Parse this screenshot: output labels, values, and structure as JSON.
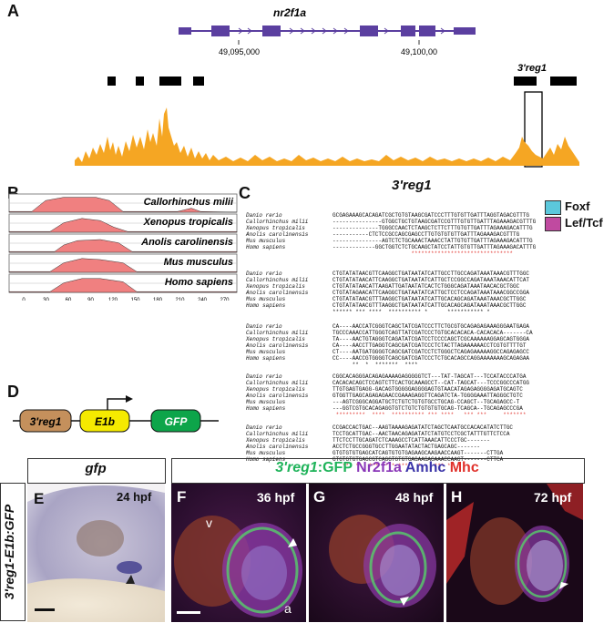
{
  "panels": {
    "A": "A",
    "B": "B",
    "C": "C",
    "D": "D",
    "E": "E",
    "F": "F",
    "G": "G",
    "H": "H"
  },
  "panel_a": {
    "gene_name": "nr2f1a",
    "coord_1": "49,095,000",
    "coord_2": "49,100,00",
    "element_label": "3'reg1",
    "colors": {
      "gene": "#5b3fa0",
      "peaks": "#f5a623"
    }
  },
  "panel_b": {
    "species": [
      "Callorhinchus milii",
      "Xenopus tropicalis",
      "Anolis carolinensis",
      "Mus musculus",
      "Homo sapiens"
    ],
    "x_ticks": [
      "0",
      "30",
      "60",
      "90",
      "120",
      "150",
      "180",
      "210",
      "240",
      "270"
    ],
    "conserved_color": "#f08080"
  },
  "panel_c": {
    "title": "3'reg1",
    "legend": [
      {
        "label": "Foxf",
        "color": "#5bc8dc"
      },
      {
        "label": "Lef/Tcf",
        "color": "#c04aa0"
      }
    ],
    "species": [
      "Danio rerio",
      "Callorhinchus milii",
      "Xenopus tropicalis",
      "Anolis carolinensis",
      "Mus musculus",
      "Homo sapiens"
    ],
    "blocks": [
      {
        "seqs": [
          "GCGAGAAAGCACAGATCGCTGTGTAAGCGATCCCTTTGTGTTGATTTAGGTAGACGTTTG",
          "---------------GTGGCTGCTGTAAGCGATCCGTTTGTGTTGATTTAGAAAGACGTTTG",
          "--------------TGGGCCAACTCTAAGCTCTTCTTTGTGTTGATTTAGAAAGACATTTG",
          "-----------CTCTCCGCCAGCGAGCCTTGTGTGTGTTGATTTAGAAAGACGTTTG",
          "---------------AGTCTCTGCAAACTAAACCTATTGTGTTGATTTAGAAAGACATTTG",
          "-------------GGCTGGTCTCTGCAAGCTATCCTATTGTGTTGATTTAGAAAGACATTTG"
        ],
        "cons": "                        *******************************"
      },
      {
        "seqs": [
          "CTGTATATAACGTTCAAGGCTGATAATATCATTGCCTTGCCAGATAAATAAACGTTTGGC",
          "CTGTATATAACATTCAAGGCTGATAATATCATTGCTCCGGCCAGATAAATAAACATTCAT",
          "CTGTATATAACATTAAGATTGATAATATCACTCTGGGCAGATAAATAACACGCTGGC",
          "CTGTATAGAACATTCAAGGCTGATAATATCATTGCTCCTCCAGATAAATAAACGGCCGGA",
          "CTGTATATAACGTTTAAGGCTGATAATATCATTGCACAGCAGATAAATAAACGCTTGGC",
          "CTGTATATAACGTTTAAGGCTGATAATATCATTGCACAGCAGATAAATAAACGCTTGGC"
        ],
        "cons": "****** *** ****  ********** *      *********** *"
      },
      {
        "seqs": [
          "CA----AACCATCGGGTCAGCTATCGATCCCTTCTGCGTGCAGAGAGAAAGGGAATGAGA",
          "TGCCCAAACCATTGGGTCAGTTATCGATCCCTGTGCACACACA-CACACACA-------CA",
          "TA----AACTGTAGGGTCAGATATCGATCCTCCCCAGCTCGCAAAAAAGGAGCAGTGGGA",
          "CA----AACCTTGAGGTCAGCGATCGATCCCTCTACTTAGAAAAAACCTCGTGTTTTGT",
          "CT----AATGATGGGGTCAGCGATCGATCCTCTGGGCTCAGAGAAAAAGGCCAGAGAGCC",
          "CC----AACCGTGGGGTCAGCGATCGATCCCTCTGCACAGCCAGGAAAAAAAGCAGAGAA"
        ],
        "cons": "      **  *  *******  ****"
      },
      {
        "seqs": [
          "CGGCACAGGGACAGAGAAAAGAGGGGGTCT---TAT-TAGCAT---TCCATACCCATGA",
          "CACACACAGCTCCAGTCTTCACTGCAAAGCCT--CAT-TAGCAT---TCCCGGCCCATGG",
          "TTGTGAGTGAGG-GACAGTGGGGGAGGGGAGTGTAACATAGAGAGGGGAGATGCAGTC",
          "GTGGTTGAGCAGAGAGAACCGAAAGAGGTTCAGATCTA-TGGGGAAATTAGGGCTGTC",
          "---AGTCGGGCAGGATGCTCTGTCTGTGTGCCTGCAG-CCAGCT--TGCAGAGCC-T",
          "---GGTCGTGCACAGAGGTGTCTGTCTGTGTGTGCAG-TCAGCA--TGCAGAGCCCGA"
        ],
        "cons": " *********  ****  ********** *** ****   *** ***     *******"
      },
      {
        "seqs": [
          "CCGACCACTGAC--AAGTAAAAGAGATATCTAGCTCAATGCCACACATATCTTGC",
          "TCCTGCATTGAC--AACTAACAGAGATATCTATGTCCTCGCTATTTGTTCTCCA",
          "TTCTCCTTGCAGATCTCAAAGCCTCATTAAACATTCCCTGC-------",
          "ACCTCTGCCGGGTGCCTTGGAATATACTACTGAGCAGC-------",
          "GTGTGTGTGAGCATCAGTGTGTGAGAAGCAAGAACCAAGT-------CTTGA",
          "GTGTGTGTGAGCGTCAGGTGTGTGAGAAGAGAAACCAAGT-------CTTCA"
        ],
        "cons": "   **  **  ***  *** ***   *    *** *"
      }
    ]
  },
  "panel_d": {
    "elements": [
      "3'reg1",
      "E1b",
      "GFP"
    ],
    "colors": {
      "reg": "#c4905c",
      "e1b": "#f5ea00",
      "gfp": "#0da54a"
    }
  },
  "panel_e": {
    "header": "gfp",
    "stage": "24 hpf",
    "side_label": "3'reg1-E1b:GFP"
  },
  "panel_fgh": {
    "header_parts": [
      {
        "text": "3'reg1",
        "color": "#1fb35a",
        "italic": true
      },
      {
        "text": ":GFP",
        "color": "#1fb35a",
        "italic": false
      },
      {
        "text": " Nr2f1a",
        "color": "#8a37b8",
        "italic": false
      },
      {
        "text": " Amhc",
        "color": "#3a34a8",
        "italic": false
      },
      {
        "text": " Mhc",
        "color": "#e0302a",
        "italic": false
      }
    ],
    "stages": [
      "36 hpf",
      "48 hpf",
      "72 hpf"
    ],
    "labels": {
      "v": "v",
      "a": "a"
    }
  }
}
